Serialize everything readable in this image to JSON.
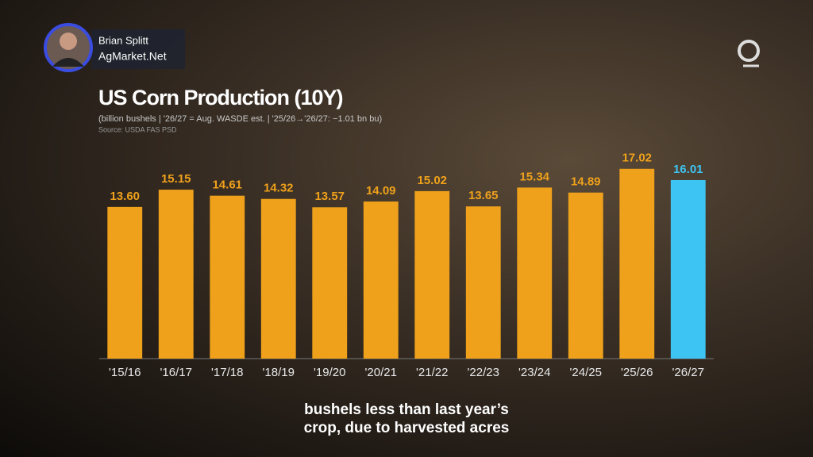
{
  "presenter": {
    "name": "Brian Splitt",
    "company": "AgMarket.Net"
  },
  "caption": [
    "bushels less than last year’s",
    "crop, due to harvested acres"
  ],
  "chart_data": {
    "type": "bar",
    "title": "US Corn Production (10Y)",
    "subtitle": "(billion bushels | '26/27 = Aug. WASDE est. | '25/26→'26/27: −1.01 bn bu)",
    "source": "Source: USDA FAS PSD",
    "categories": [
      "'15/16",
      "'16/17",
      "'17/18",
      "'18/19",
      "'19/20",
      "'20/21",
      "'21/22",
      "'22/23",
      "'23/24",
      "'24/25",
      "'25/26",
      "'26/27"
    ],
    "values": [
      13.6,
      15.15,
      14.61,
      14.32,
      13.57,
      14.09,
      15.02,
      13.65,
      15.34,
      14.89,
      17.02,
      16.01
    ],
    "value_labels": [
      "13.60",
      "15.15",
      "14.61",
      "14.32",
      "13.57",
      "14.09",
      "15.02",
      "13.65",
      "15.34",
      "14.89",
      "17.02",
      "16.01"
    ],
    "colors": [
      "#efa11b",
      "#efa11b",
      "#efa11b",
      "#efa11b",
      "#efa11b",
      "#efa11b",
      "#efa11b",
      "#efa11b",
      "#efa11b",
      "#efa11b",
      "#efa11b",
      "#3ec4f2"
    ],
    "ylim": [
      0,
      18
    ],
    "grid": false
  }
}
